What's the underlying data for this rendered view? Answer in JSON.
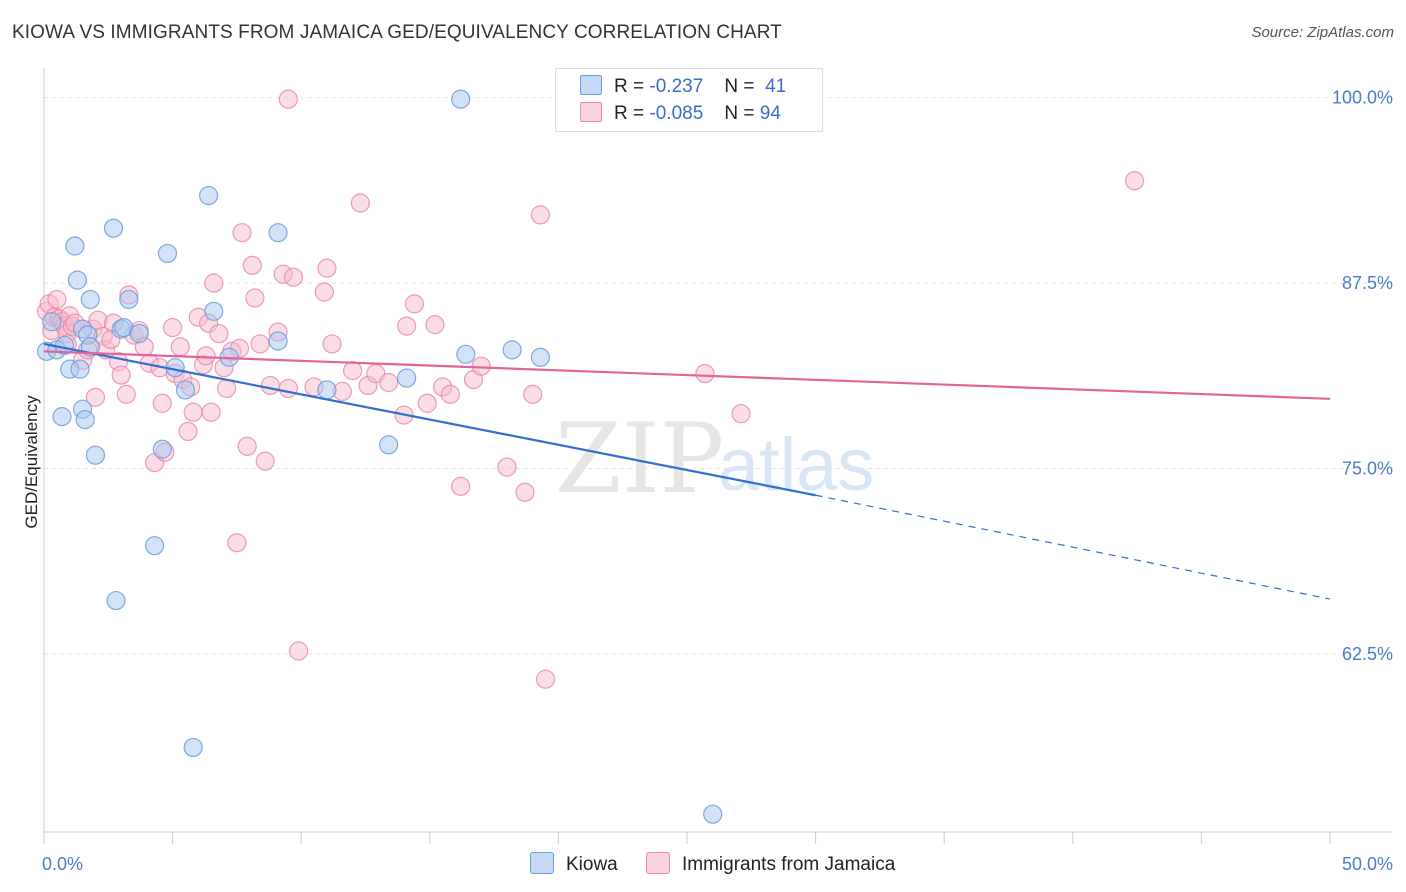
{
  "title": "KIOWA VS IMMIGRANTS FROM JAMAICA GED/EQUIVALENCY CORRELATION CHART",
  "source": "Source: ZipAtlas.com",
  "watermark": {
    "zip": "ZIP",
    "atlas": "atlas"
  },
  "colors": {
    "kiowa_fill": "#a8c8f0",
    "kiowa_stroke": "#6b9bd8",
    "kiowa_line": "#2f6fd0",
    "jamaica_fill": "#f7bcd0",
    "jamaica_stroke": "#e98aab",
    "jamaica_line": "#e0659a",
    "tick_label": "#4a7cc9",
    "grid": "#e4e4e4"
  },
  "legend": {
    "r_label": "R =",
    "n_label": "N =",
    "series": [
      {
        "r": "-0.237",
        "n": "41"
      },
      {
        "r": "-0.085",
        "n": "94"
      }
    ]
  },
  "chart_data": {
    "type": "scatter",
    "xlabel": "",
    "ylabel": "GED/Equivalency",
    "xlim": [
      0,
      50
    ],
    "ylim": [
      50.5,
      102
    ],
    "x_tick_labels": [
      {
        "value": 0,
        "label": "0.0%"
      },
      {
        "value": 50,
        "label": "50.0%"
      }
    ],
    "y_ticks": [
      {
        "value": 100,
        "label": "100.0%"
      },
      {
        "value": 87.5,
        "label": "87.5%"
      },
      {
        "value": 75,
        "label": "75.0%"
      },
      {
        "value": 62.5,
        "label": "62.5%"
      }
    ],
    "grid": true,
    "legend_position": "top-center",
    "series": [
      {
        "name": "Kiowa",
        "points": [
          [
            0.1,
            82.9
          ],
          [
            0.3,
            84.9
          ],
          [
            0.5,
            83.0
          ],
          [
            0.7,
            78.5
          ],
          [
            0.8,
            83.3
          ],
          [
            1.0,
            81.7
          ],
          [
            1.2,
            90.0
          ],
          [
            1.3,
            87.7
          ],
          [
            1.4,
            81.7
          ],
          [
            1.5,
            79.0
          ],
          [
            1.5,
            84.4
          ],
          [
            1.6,
            78.3
          ],
          [
            1.7,
            84.0
          ],
          [
            1.8,
            83.2
          ],
          [
            1.8,
            86.4
          ],
          [
            2.0,
            75.9
          ],
          [
            2.7,
            91.2
          ],
          [
            2.8,
            66.1
          ],
          [
            3.0,
            84.4
          ],
          [
            3.1,
            84.5
          ],
          [
            3.3,
            86.4
          ],
          [
            3.7,
            84.1
          ],
          [
            4.3,
            69.8
          ],
          [
            4.6,
            76.3
          ],
          [
            4.8,
            89.5
          ],
          [
            5.1,
            81.8
          ],
          [
            5.5,
            80.3
          ],
          [
            5.8,
            56.2
          ],
          [
            6.4,
            93.4
          ],
          [
            6.6,
            85.6
          ],
          [
            7.2,
            82.5
          ],
          [
            9.1,
            90.9
          ],
          [
            9.1,
            83.6
          ],
          [
            11.0,
            80.3
          ],
          [
            14.1,
            81.1
          ],
          [
            16.2,
            99.9
          ],
          [
            16.4,
            82.7
          ],
          [
            18.2,
            83.0
          ],
          [
            19.3,
            82.5
          ],
          [
            26.0,
            51.7
          ],
          [
            13.4,
            76.6
          ]
        ],
        "trend": {
          "x0": 0,
          "y0": 83.4,
          "x1": 30,
          "y1": 73.2,
          "dash_x1": 50,
          "dash_y1": 66.2
        }
      },
      {
        "name": "Immigrants from Jamaica",
        "points": [
          [
            0.1,
            85.6
          ],
          [
            0.2,
            86.1
          ],
          [
            0.3,
            84.3
          ],
          [
            0.4,
            85.2
          ],
          [
            0.5,
            86.4
          ],
          [
            0.6,
            85.1
          ],
          [
            0.7,
            84.9
          ],
          [
            0.8,
            84.6
          ],
          [
            0.9,
            84.1
          ],
          [
            1.0,
            85.3
          ],
          [
            1.1,
            84.6
          ],
          [
            1.2,
            84.8
          ],
          [
            1.5,
            82.3
          ],
          [
            1.7,
            83.0
          ],
          [
            1.9,
            84.4
          ],
          [
            2.0,
            79.8
          ],
          [
            2.1,
            85.0
          ],
          [
            2.3,
            83.9
          ],
          [
            2.4,
            83.0
          ],
          [
            2.7,
            84.8
          ],
          [
            2.9,
            82.2
          ],
          [
            3.0,
            81.3
          ],
          [
            3.2,
            80.0
          ],
          [
            3.3,
            86.7
          ],
          [
            3.5,
            84.0
          ],
          [
            3.7,
            84.3
          ],
          [
            3.9,
            83.2
          ],
          [
            4.1,
            82.1
          ],
          [
            4.3,
            75.4
          ],
          [
            4.5,
            81.8
          ],
          [
            4.6,
            79.4
          ],
          [
            4.7,
            76.1
          ],
          [
            5.0,
            84.5
          ],
          [
            5.1,
            81.4
          ],
          [
            5.3,
            83.2
          ],
          [
            5.4,
            81.0
          ],
          [
            5.6,
            77.5
          ],
          [
            5.7,
            80.5
          ],
          [
            5.8,
            78.8
          ],
          [
            6.0,
            85.2
          ],
          [
            6.2,
            82.0
          ],
          [
            6.4,
            84.8
          ],
          [
            6.5,
            78.8
          ],
          [
            6.6,
            87.5
          ],
          [
            6.8,
            84.1
          ],
          [
            7.0,
            81.8
          ],
          [
            7.1,
            80.4
          ],
          [
            7.3,
            82.9
          ],
          [
            7.5,
            70.0
          ],
          [
            7.6,
            83.1
          ],
          [
            7.7,
            90.9
          ],
          [
            7.9,
            76.5
          ],
          [
            8.1,
            88.7
          ],
          [
            8.2,
            86.5
          ],
          [
            8.4,
            83.4
          ],
          [
            8.6,
            75.5
          ],
          [
            8.8,
            80.6
          ],
          [
            9.1,
            84.2
          ],
          [
            9.3,
            88.1
          ],
          [
            9.5,
            80.4
          ],
          [
            9.7,
            87.9
          ],
          [
            9.9,
            62.7
          ],
          [
            10.5,
            80.5
          ],
          [
            10.9,
            86.9
          ],
          [
            11.0,
            88.5
          ],
          [
            11.2,
            83.4
          ],
          [
            11.6,
            80.2
          ],
          [
            12.0,
            81.6
          ],
          [
            12.3,
            92.9
          ],
          [
            12.6,
            80.6
          ],
          [
            12.9,
            81.4
          ],
          [
            13.4,
            80.8
          ],
          [
            14.0,
            78.6
          ],
          [
            14.1,
            84.6
          ],
          [
            14.4,
            86.1
          ],
          [
            14.9,
            79.4
          ],
          [
            15.2,
            84.7
          ],
          [
            15.5,
            80.5
          ],
          [
            15.8,
            80.0
          ],
          [
            16.2,
            73.8
          ],
          [
            16.7,
            81.0
          ],
          [
            17.0,
            81.9
          ],
          [
            18.0,
            75.1
          ],
          [
            18.7,
            73.4
          ],
          [
            19.0,
            80.0
          ],
          [
            19.3,
            92.1
          ],
          [
            19.5,
            60.8
          ],
          [
            25.7,
            81.4
          ],
          [
            27.1,
            78.7
          ],
          [
            42.4,
            94.4
          ],
          [
            9.5,
            99.9
          ],
          [
            6.3,
            82.6
          ],
          [
            2.6,
            83.7
          ],
          [
            0.9,
            83.4
          ]
        ],
        "trend": {
          "x0": 0,
          "y0": 82.9,
          "x1": 50,
          "y1": 79.7
        }
      }
    ]
  }
}
